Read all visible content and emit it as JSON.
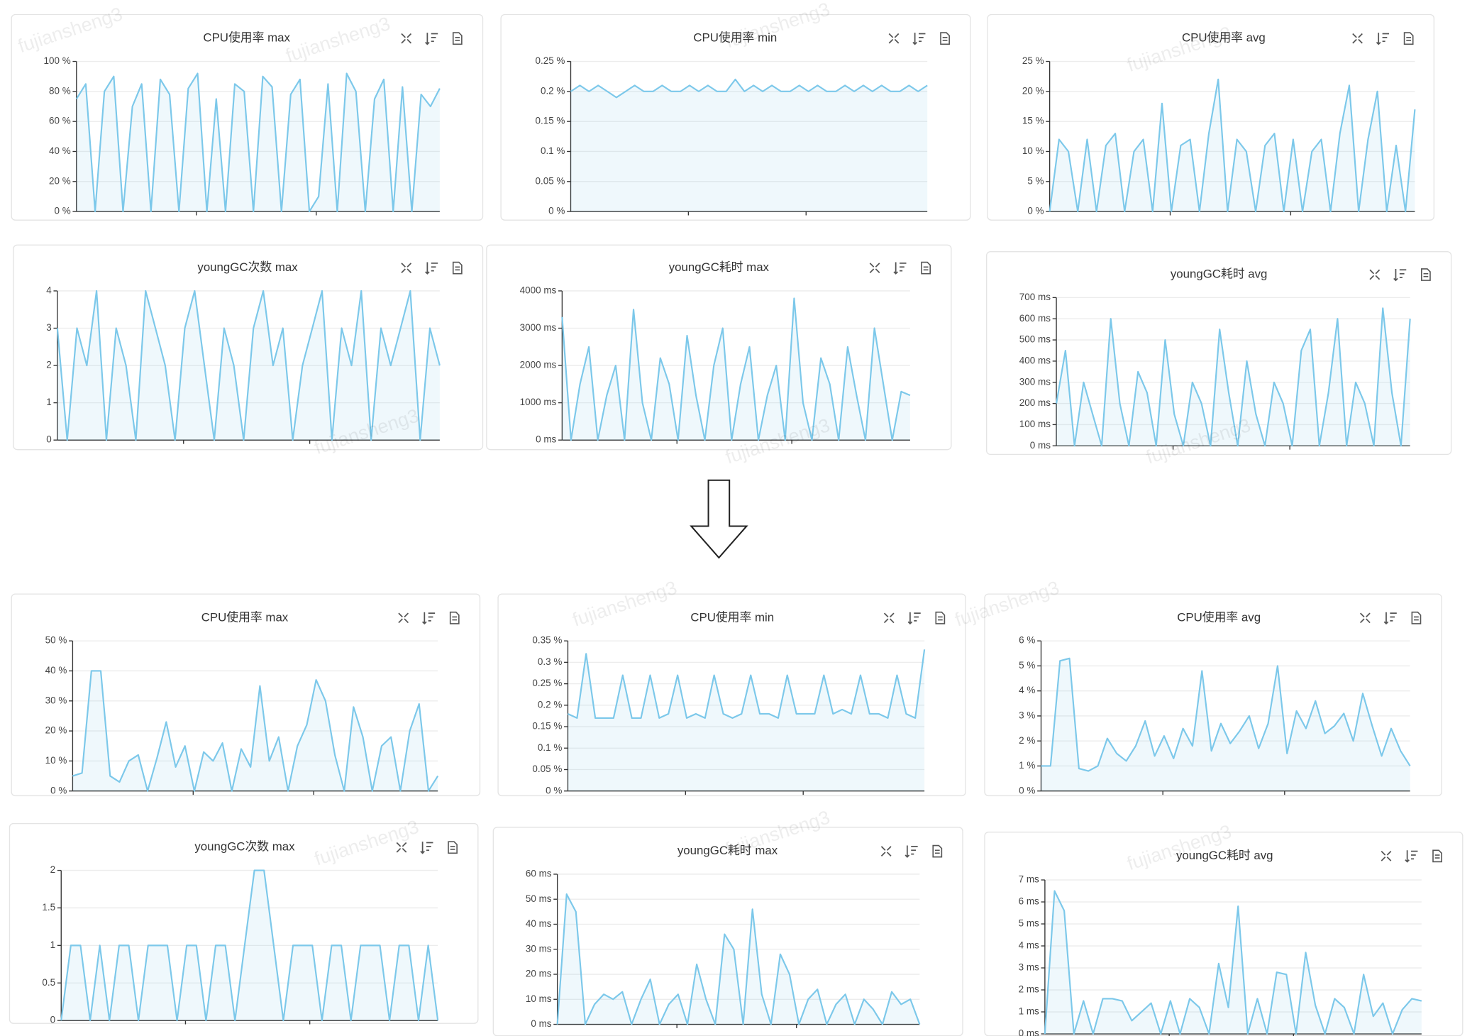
{
  "watermark": "fujiansheng3",
  "chart_data": [
    {
      "type": "line",
      "title": "CPU使用率 max",
      "color": "#7cc8ea",
      "grid": true,
      "ylim": [
        0,
        100
      ],
      "yticks": [
        {
          "value": 0,
          "label": "0 %"
        },
        {
          "value": 20,
          "label": "20 %"
        },
        {
          "value": 40,
          "label": "40 %"
        },
        {
          "value": 60,
          "label": "60 %"
        },
        {
          "value": 80,
          "label": "80 %"
        },
        {
          "value": 100,
          "label": "100 %"
        }
      ],
      "values": [
        75,
        85,
        0,
        80,
        90,
        0,
        70,
        85,
        0,
        88,
        78,
        0,
        82,
        92,
        0,
        75,
        0,
        85,
        80,
        0,
        90,
        83,
        0,
        78,
        88,
        0,
        10,
        85,
        0,
        92,
        80,
        0,
        75,
        88,
        0,
        83,
        0,
        78,
        70,
        82
      ]
    },
    {
      "type": "line",
      "title": "CPU使用率 min",
      "color": "#7cc8ea",
      "grid": true,
      "ylim": [
        0,
        0.25
      ],
      "yticks": [
        {
          "value": 0,
          "label": "0 %"
        },
        {
          "value": 0.05,
          "label": "0.05 %"
        },
        {
          "value": 0.1,
          "label": "0.1 %"
        },
        {
          "value": 0.15,
          "label": "0.15 %"
        },
        {
          "value": 0.2,
          "label": "0.2 %"
        },
        {
          "value": 0.25,
          "label": "0.25 %"
        }
      ],
      "values": [
        0.2,
        0.21,
        0.2,
        0.21,
        0.2,
        0.19,
        0.2,
        0.21,
        0.2,
        0.2,
        0.21,
        0.2,
        0.2,
        0.21,
        0.2,
        0.21,
        0.2,
        0.2,
        0.22,
        0.2,
        0.21,
        0.2,
        0.21,
        0.2,
        0.2,
        0.21,
        0.2,
        0.21,
        0.2,
        0.2,
        0.21,
        0.2,
        0.21,
        0.2,
        0.21,
        0.2,
        0.2,
        0.21,
        0.2,
        0.21
      ]
    },
    {
      "type": "line",
      "title": "CPU使用率 avg",
      "color": "#7cc8ea",
      "grid": true,
      "ylim": [
        0,
        25
      ],
      "yticks": [
        {
          "value": 0,
          "label": "0 %"
        },
        {
          "value": 5,
          "label": "5 %"
        },
        {
          "value": 10,
          "label": "10 %"
        },
        {
          "value": 15,
          "label": "15 %"
        },
        {
          "value": 20,
          "label": "20 %"
        },
        {
          "value": 25,
          "label": "25 %"
        }
      ],
      "values": [
        0,
        12,
        10,
        0,
        12,
        0,
        11,
        13,
        0,
        10,
        12,
        0,
        18,
        0,
        11,
        12,
        0,
        13,
        22,
        0,
        12,
        10,
        0,
        11,
        13,
        0,
        12,
        0,
        10,
        12,
        0,
        13,
        21,
        0,
        12,
        20,
        0,
        11,
        0,
        17
      ]
    },
    {
      "type": "line",
      "title": "youngGC次数 max",
      "color": "#7cc8ea",
      "grid": true,
      "ylim": [
        0,
        4
      ],
      "yticks": [
        0,
        1,
        2,
        3,
        4
      ],
      "values": [
        3,
        0,
        3,
        2,
        4,
        0,
        3,
        2,
        0,
        4,
        3,
        2,
        0,
        3,
        4,
        2,
        0,
        3,
        2,
        0,
        3,
        4,
        2,
        3,
        0,
        2,
        3,
        4,
        0,
        3,
        2,
        4,
        0,
        3,
        2,
        3,
        4,
        0,
        3,
        2
      ]
    },
    {
      "type": "line",
      "title": "youngGC耗时 max",
      "color": "#7cc8ea",
      "grid": true,
      "ylim": [
        0,
        4000
      ],
      "yticks": [
        {
          "value": 0,
          "label": "0 ms"
        },
        {
          "value": 1000,
          "label": "1000 ms"
        },
        {
          "value": 2000,
          "label": "2000 ms"
        },
        {
          "value": 3000,
          "label": "3000 ms"
        },
        {
          "value": 4000,
          "label": "4000 ms"
        }
      ],
      "values": [
        3300,
        0,
        1500,
        2500,
        0,
        1200,
        2000,
        0,
        3500,
        1000,
        0,
        2200,
        1500,
        0,
        2800,
        1200,
        0,
        2000,
        3000,
        0,
        1500,
        2500,
        0,
        1200,
        2000,
        0,
        3800,
        1000,
        0,
        2200,
        1500,
        0,
        2500,
        1200,
        0,
        3000,
        1500,
        0,
        1300,
        1200
      ]
    },
    {
      "type": "line",
      "title": "youngGC耗时 avg",
      "color": "#7cc8ea",
      "grid": true,
      "ylim": [
        0,
        700
      ],
      "yticks": [
        {
          "value": 0,
          "label": "0 ms"
        },
        {
          "value": 100,
          "label": "100 ms"
        },
        {
          "value": 200,
          "label": "200 ms"
        },
        {
          "value": 300,
          "label": "300 ms"
        },
        {
          "value": 400,
          "label": "400 ms"
        },
        {
          "value": 500,
          "label": "500 ms"
        },
        {
          "value": 600,
          "label": "600 ms"
        },
        {
          "value": 700,
          "label": "700 ms"
        }
      ],
      "values": [
        200,
        450,
        0,
        300,
        150,
        0,
        600,
        200,
        0,
        350,
        250,
        0,
        500,
        150,
        0,
        300,
        200,
        0,
        550,
        250,
        0,
        400,
        150,
        0,
        300,
        200,
        0,
        450,
        550,
        0,
        250,
        600,
        0,
        300,
        200,
        0,
        650,
        250,
        0,
        600
      ]
    },
    {
      "type": "line",
      "title": "CPU使用率 max",
      "color": "#7cc8ea",
      "grid": true,
      "ylim": [
        0,
        50
      ],
      "yticks": [
        {
          "value": 0,
          "label": "0 %"
        },
        {
          "value": 10,
          "label": "10 %"
        },
        {
          "value": 20,
          "label": "20 %"
        },
        {
          "value": 30,
          "label": "30 %"
        },
        {
          "value": 40,
          "label": "40 %"
        },
        {
          "value": 50,
          "label": "50 %"
        }
      ],
      "values": [
        5,
        6,
        40,
        40,
        5,
        3,
        10,
        12,
        0,
        11,
        23,
        8,
        15,
        0,
        13,
        10,
        16,
        0,
        14,
        8,
        35,
        10,
        18,
        0,
        15,
        22,
        37,
        30,
        12,
        0,
        28,
        18,
        0,
        15,
        18,
        0,
        20,
        29,
        0,
        5
      ]
    },
    {
      "type": "line",
      "title": "CPU使用率 min",
      "color": "#7cc8ea",
      "grid": true,
      "ylim": [
        0,
        0.35
      ],
      "yticks": [
        {
          "value": 0,
          "label": "0 %"
        },
        {
          "value": 0.05,
          "label": "0.05 %"
        },
        {
          "value": 0.1,
          "label": "0.1 %"
        },
        {
          "value": 0.15,
          "label": "0.15 %"
        },
        {
          "value": 0.2,
          "label": "0.2 %"
        },
        {
          "value": 0.25,
          "label": "0.25 %"
        },
        {
          "value": 0.3,
          "label": "0.3 %"
        },
        {
          "value": 0.35,
          "label": "0.35 %"
        }
      ],
      "values": [
        0.18,
        0.17,
        0.32,
        0.17,
        0.17,
        0.17,
        0.27,
        0.17,
        0.17,
        0.27,
        0.17,
        0.18,
        0.27,
        0.17,
        0.18,
        0.17,
        0.27,
        0.18,
        0.17,
        0.18,
        0.27,
        0.18,
        0.18,
        0.17,
        0.27,
        0.18,
        0.18,
        0.18,
        0.27,
        0.18,
        0.19,
        0.18,
        0.27,
        0.18,
        0.18,
        0.17,
        0.27,
        0.18,
        0.17,
        0.33
      ]
    },
    {
      "type": "line",
      "title": "CPU使用率 avg",
      "color": "#7cc8ea",
      "grid": true,
      "ylim": [
        0,
        6
      ],
      "yticks": [
        {
          "value": 0,
          "label": "0 %"
        },
        {
          "value": 1,
          "label": "1 %"
        },
        {
          "value": 2,
          "label": "2 %"
        },
        {
          "value": 3,
          "label": "3 %"
        },
        {
          "value": 4,
          "label": "4 %"
        },
        {
          "value": 5,
          "label": "5 %"
        },
        {
          "value": 6,
          "label": "6 %"
        }
      ],
      "values": [
        1,
        1,
        5.2,
        5.3,
        0.9,
        0.8,
        1,
        2.1,
        1.5,
        1.2,
        1.8,
        2.8,
        1.4,
        2.2,
        1.3,
        2.5,
        1.8,
        4.8,
        1.6,
        2.7,
        1.9,
        2.4,
        3,
        1.7,
        2.7,
        5,
        1.5,
        3.2,
        2.5,
        3.6,
        2.3,
        2.6,
        3.1,
        2,
        3.9,
        2.6,
        1.4,
        2.5,
        1.6,
        1
      ]
    },
    {
      "type": "line",
      "title": "youngGC次数 max",
      "color": "#7cc8ea",
      "grid": true,
      "ylim": [
        0,
        2
      ],
      "yticks": [
        0,
        0.5,
        1,
        1.5,
        2
      ],
      "values": [
        0,
        1,
        1,
        0,
        1,
        0,
        1,
        1,
        0,
        1,
        1,
        1,
        0,
        1,
        1,
        0,
        1,
        1,
        0,
        1,
        2,
        2,
        1,
        0,
        1,
        1,
        1,
        0,
        1,
        1,
        0,
        1,
        1,
        1,
        0,
        1,
        1,
        0,
        1,
        0
      ]
    },
    {
      "type": "line",
      "title": "youngGC耗时 max",
      "color": "#7cc8ea",
      "grid": true,
      "ylim": [
        0,
        60
      ],
      "yticks": [
        {
          "value": 0,
          "label": "0 ms"
        },
        {
          "value": 10,
          "label": "10 ms"
        },
        {
          "value": 20,
          "label": "20 ms"
        },
        {
          "value": 30,
          "label": "30 ms"
        },
        {
          "value": 40,
          "label": "40 ms"
        },
        {
          "value": 50,
          "label": "50 ms"
        },
        {
          "value": 60,
          "label": "60 ms"
        }
      ],
      "values": [
        0,
        52,
        45,
        0,
        8,
        12,
        10,
        13,
        0,
        10,
        18,
        0,
        8,
        12,
        0,
        24,
        10,
        0,
        36,
        30,
        0,
        46,
        12,
        0,
        28,
        20,
        0,
        10,
        14,
        0,
        8,
        12,
        0,
        10,
        6,
        0,
        13,
        8,
        10,
        0
      ]
    },
    {
      "type": "line",
      "title": "youngGC耗时 avg",
      "color": "#7cc8ea",
      "grid": true,
      "ylim": [
        0,
        7
      ],
      "yticks": [
        {
          "value": 0,
          "label": "0 ms"
        },
        {
          "value": 1,
          "label": "1 ms"
        },
        {
          "value": 2,
          "label": "2 ms"
        },
        {
          "value": 3,
          "label": "3 ms"
        },
        {
          "value": 4,
          "label": "4 ms"
        },
        {
          "value": 5,
          "label": "5 ms"
        },
        {
          "value": 6,
          "label": "6 ms"
        },
        {
          "value": 7,
          "label": "7 ms"
        }
      ],
      "values": [
        0,
        6.5,
        5.6,
        0,
        1.5,
        0,
        1.6,
        1.6,
        1.5,
        0.6,
        1,
        1.4,
        0,
        1.5,
        0,
        1.6,
        1.2,
        0,
        3.2,
        1.2,
        5.8,
        0,
        1.6,
        0,
        2.8,
        2.7,
        0,
        3.7,
        1.3,
        0,
        1.6,
        1.2,
        0,
        2.7,
        0.8,
        1.4,
        0,
        1.1,
        1.6,
        1.5
      ]
    }
  ]
}
